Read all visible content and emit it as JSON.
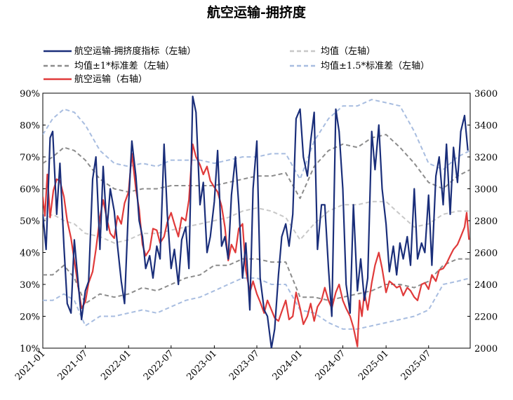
{
  "chart_data": {
    "type": "line",
    "title": "航空运输-拥挤度",
    "xlabel": "",
    "ylabel_left": "",
    "ylabel_right": "",
    "x_ticks": [
      "2021-01",
      "2021-07",
      "2022-01",
      "2022-07",
      "2023-01",
      "2023-07",
      "2024-01",
      "2024-07",
      "2025-01",
      "2025-07"
    ],
    "x_range": [
      "2021-01-01",
      "2025-12-25"
    ],
    "y_left_ticks": [
      "10%",
      "20%",
      "30%",
      "40%",
      "50%",
      "60%",
      "70%",
      "80%",
      "90%"
    ],
    "y_left_range": [
      0.1,
      0.9
    ],
    "y_right_ticks": [
      "2000",
      "2200",
      "2400",
      "2600",
      "2800",
      "3000",
      "3200",
      "3400",
      "3600"
    ],
    "y_right_range": [
      2000,
      3600
    ],
    "grid": false,
    "legend_position": "top",
    "series": [
      {
        "name": "航空运输-拥挤度指标（左轴）",
        "axis": "left",
        "style": "solid",
        "color": "#1a2e7a",
        "x": [
          "2021-01-01",
          "2021-01-15",
          "2021-02-01",
          "2021-02-12",
          "2021-03-01",
          "2021-03-15",
          "2021-04-01",
          "2021-04-15",
          "2021-05-01",
          "2021-05-15",
          "2021-06-01",
          "2021-06-15",
          "2021-07-01",
          "2021-07-15",
          "2021-08-01",
          "2021-08-15",
          "2021-09-01",
          "2021-09-15",
          "2021-10-01",
          "2021-10-15",
          "2021-11-01",
          "2021-11-15",
          "2021-12-01",
          "2021-12-15",
          "2022-01-01",
          "2022-01-15",
          "2022-02-01",
          "2022-02-15",
          "2022-03-01",
          "2022-03-15",
          "2022-04-01",
          "2022-04-15",
          "2022-05-01",
          "2022-05-15",
          "2022-06-01",
          "2022-06-15",
          "2022-07-01",
          "2022-07-15",
          "2022-08-01",
          "2022-08-15",
          "2022-09-01",
          "2022-09-15",
          "2022-10-01",
          "2022-10-15",
          "2022-11-01",
          "2022-11-15",
          "2022-12-01",
          "2022-12-15",
          "2023-01-01",
          "2023-01-15",
          "2023-02-01",
          "2023-02-15",
          "2023-03-01",
          "2023-03-15",
          "2023-04-01",
          "2023-04-15",
          "2023-05-01",
          "2023-05-15",
          "2023-06-01",
          "2023-06-15",
          "2023-07-01",
          "2023-07-15",
          "2023-08-01",
          "2023-08-15",
          "2023-09-01",
          "2023-09-15",
          "2023-10-01",
          "2023-10-15",
          "2023-11-01",
          "2023-11-15",
          "2023-12-01",
          "2023-12-15",
          "2024-01-01",
          "2024-01-15",
          "2024-02-01",
          "2024-02-15",
          "2024-03-01",
          "2024-03-15",
          "2024-04-01",
          "2024-04-15",
          "2024-05-01",
          "2024-05-15",
          "2024-06-01",
          "2024-06-15",
          "2024-07-01",
          "2024-07-15",
          "2024-08-01",
          "2024-08-15",
          "2024-09-01",
          "2024-09-15",
          "2024-10-01",
          "2024-10-15",
          "2024-11-01",
          "2024-11-15",
          "2024-12-01",
          "2024-12-15",
          "2025-01-01",
          "2025-01-15",
          "2025-02-01",
          "2025-02-15",
          "2025-03-01",
          "2025-03-15",
          "2025-04-01",
          "2025-04-15",
          "2025-05-01",
          "2025-05-15",
          "2025-06-01",
          "2025-06-15",
          "2025-07-01",
          "2025-07-15",
          "2025-08-01",
          "2025-08-15",
          "2025-09-01",
          "2025-09-15",
          "2025-10-01",
          "2025-10-15",
          "2025-11-01",
          "2025-11-15",
          "2025-12-01",
          "2025-12-15"
        ],
        "values": [
          0.52,
          0.41,
          0.76,
          0.78,
          0.52,
          0.68,
          0.42,
          0.24,
          0.21,
          0.44,
          0.3,
          0.19,
          0.28,
          0.31,
          0.63,
          0.7,
          0.41,
          0.67,
          0.47,
          0.6,
          0.53,
          0.42,
          0.31,
          0.24,
          0.55,
          0.75,
          0.64,
          0.5,
          0.45,
          0.35,
          0.39,
          0.32,
          0.42,
          0.38,
          0.74,
          0.52,
          0.35,
          0.41,
          0.3,
          0.44,
          0.48,
          0.35,
          0.89,
          0.84,
          0.55,
          0.62,
          0.4,
          0.45,
          0.56,
          0.72,
          0.42,
          0.45,
          0.38,
          0.58,
          0.7,
          0.55,
          0.32,
          0.43,
          0.22,
          0.6,
          0.75,
          0.32,
          0.22,
          0.2,
          0.1,
          0.16,
          0.33,
          0.45,
          0.49,
          0.42,
          0.52,
          0.82,
          0.85,
          0.7,
          0.64,
          0.75,
          0.84,
          0.41,
          0.55,
          0.55,
          0.35,
          0.2,
          0.85,
          0.78,
          0.6,
          0.3,
          0.21,
          0.55,
          0.28,
          0.38,
          0.25,
          0.32,
          0.78,
          0.66,
          0.8,
          0.6,
          0.49,
          0.34,
          0.42,
          0.33,
          0.43,
          0.38,
          0.45,
          0.36,
          0.6,
          0.38,
          0.43,
          0.4,
          0.58,
          0.36,
          0.64,
          0.7,
          0.55,
          0.74,
          0.52,
          0.73,
          0.62,
          0.78,
          0.83,
          0.72
        ]
      },
      {
        "name": "均值（左轴）",
        "axis": "left",
        "style": "dash",
        "color": "#c8c8c8",
        "x": [
          "2021-01-01",
          "2021-02-12",
          "2021-04-01",
          "2021-05-15",
          "2021-07-01",
          "2021-09-01",
          "2021-11-01",
          "2022-01-01",
          "2022-03-01",
          "2022-05-01",
          "2022-07-01",
          "2022-09-01",
          "2022-11-01",
          "2023-01-01",
          "2023-03-01",
          "2023-05-01",
          "2023-07-01",
          "2023-09-01",
          "2023-11-01",
          "2024-01-01",
          "2024-03-01",
          "2024-05-01",
          "2024-07-01",
          "2024-09-01",
          "2024-11-01",
          "2025-01-01",
          "2025-03-01",
          "2025-05-01",
          "2025-07-01",
          "2025-09-01",
          "2025-11-01",
          "2025-12-25"
        ],
        "values": [
          0.5,
          0.52,
          0.5,
          0.49,
          0.46,
          0.45,
          0.43,
          0.44,
          0.46,
          0.46,
          0.47,
          0.48,
          0.49,
          0.5,
          0.51,
          0.53,
          0.54,
          0.53,
          0.51,
          0.44,
          0.49,
          0.53,
          0.55,
          0.55,
          0.56,
          0.56,
          0.52,
          0.48,
          0.49,
          0.52,
          0.53,
          0.53
        ]
      },
      {
        "name": "均值±1*标准差（左轴）",
        "axis": "left",
        "style": "dash",
        "color": "#8c8c8c",
        "x": [
          "2021-01-01",
          "2021-02-12",
          "2021-04-01",
          "2021-05-15",
          "2021-07-01",
          "2021-09-01",
          "2021-11-01",
          "2022-01-01",
          "2022-03-01",
          "2022-05-01",
          "2022-07-01",
          "2022-09-01",
          "2022-11-01",
          "2023-01-01",
          "2023-03-01",
          "2023-05-01",
          "2023-07-01",
          "2023-09-01",
          "2023-11-01",
          "2024-01-01",
          "2024-03-01",
          "2024-05-01",
          "2024-07-01",
          "2024-09-01",
          "2024-11-01",
          "2025-01-01",
          "2025-03-01",
          "2025-05-01",
          "2025-07-01",
          "2025-09-01",
          "2025-11-01",
          "2025-12-25"
        ],
        "upper": [
          0.68,
          0.7,
          0.73,
          0.72,
          0.69,
          0.63,
          0.6,
          0.59,
          0.6,
          0.6,
          0.61,
          0.61,
          0.61,
          0.61,
          0.62,
          0.63,
          0.64,
          0.64,
          0.65,
          0.57,
          0.67,
          0.72,
          0.74,
          0.73,
          0.76,
          0.77,
          0.73,
          0.68,
          0.62,
          0.6,
          0.64,
          0.66
        ],
        "lower": [
          0.33,
          0.33,
          0.36,
          0.32,
          0.24,
          0.27,
          0.26,
          0.27,
          0.29,
          0.28,
          0.3,
          0.32,
          0.33,
          0.36,
          0.36,
          0.38,
          0.38,
          0.37,
          0.37,
          0.26,
          0.26,
          0.25,
          0.26,
          0.27,
          0.28,
          0.3,
          0.3,
          0.29,
          0.31,
          0.36,
          0.38,
          0.38
        ]
      },
      {
        "name": "均值±1.5*标准差（左轴）",
        "axis": "left",
        "style": "dash",
        "color": "#a8bde0",
        "x": [
          "2021-01-01",
          "2021-02-12",
          "2021-04-01",
          "2021-05-15",
          "2021-07-01",
          "2021-09-01",
          "2021-11-01",
          "2022-01-01",
          "2022-03-01",
          "2022-05-01",
          "2022-07-01",
          "2022-09-01",
          "2022-11-01",
          "2023-01-01",
          "2023-03-01",
          "2023-05-01",
          "2023-07-01",
          "2023-09-01",
          "2023-11-01",
          "2024-01-01",
          "2024-03-01",
          "2024-05-01",
          "2024-07-01",
          "2024-09-01",
          "2024-11-01",
          "2025-01-01",
          "2025-03-01",
          "2025-05-01",
          "2025-07-01",
          "2025-09-01",
          "2025-11-01",
          "2025-12-25"
        ],
        "upper": [
          0.77,
          0.82,
          0.85,
          0.84,
          0.8,
          0.72,
          0.68,
          0.67,
          0.68,
          0.67,
          0.69,
          0.69,
          0.69,
          0.68,
          0.69,
          0.7,
          0.7,
          0.71,
          0.71,
          0.63,
          0.75,
          0.82,
          0.86,
          0.86,
          0.88,
          0.87,
          0.86,
          0.78,
          0.68,
          0.66,
          0.7,
          0.72
        ],
        "lower": [
          0.25,
          0.25,
          0.27,
          0.25,
          0.17,
          0.2,
          0.2,
          0.21,
          0.22,
          0.21,
          0.23,
          0.25,
          0.26,
          0.28,
          0.3,
          0.32,
          0.32,
          0.3,
          0.3,
          0.22,
          0.21,
          0.18,
          0.16,
          0.16,
          0.17,
          0.18,
          0.19,
          0.2,
          0.22,
          0.3,
          0.31,
          0.32
        ]
      },
      {
        "name": "航空运输（右轴）",
        "axis": "right",
        "style": "solid",
        "color": "#e03a3a",
        "x": [
          "2021-01-01",
          "2021-01-10",
          "2021-01-20",
          "2021-02-01",
          "2021-02-15",
          "2021-03-01",
          "2021-03-15",
          "2021-04-01",
          "2021-04-15",
          "2021-05-01",
          "2021-05-15",
          "2021-06-01",
          "2021-06-15",
          "2021-07-01",
          "2021-07-15",
          "2021-08-01",
          "2021-08-15",
          "2021-09-01",
          "2021-09-15",
          "2021-10-01",
          "2021-10-15",
          "2021-11-01",
          "2021-11-15",
          "2021-12-01",
          "2021-12-15",
          "2022-01-01",
          "2022-01-15",
          "2022-02-01",
          "2022-02-15",
          "2022-03-01",
          "2022-03-15",
          "2022-04-01",
          "2022-04-15",
          "2022-05-01",
          "2022-05-15",
          "2022-06-01",
          "2022-06-15",
          "2022-07-01",
          "2022-07-15",
          "2022-08-01",
          "2022-08-15",
          "2022-09-01",
          "2022-09-15",
          "2022-10-01",
          "2022-10-15",
          "2022-11-01",
          "2022-11-15",
          "2022-12-01",
          "2022-12-15",
          "2023-01-01",
          "2023-01-15",
          "2023-02-01",
          "2023-02-15",
          "2023-03-01",
          "2023-03-15",
          "2023-04-01",
          "2023-04-15",
          "2023-05-01",
          "2023-05-15",
          "2023-06-01",
          "2023-06-15",
          "2023-07-01",
          "2023-07-15",
          "2023-08-01",
          "2023-08-15",
          "2023-09-01",
          "2023-09-15",
          "2023-10-01",
          "2023-10-15",
          "2023-11-01",
          "2023-11-15",
          "2023-12-01",
          "2023-12-15",
          "2024-01-01",
          "2024-01-15",
          "2024-02-01",
          "2024-02-15",
          "2024-03-01",
          "2024-03-15",
          "2024-04-01",
          "2024-04-15",
          "2024-05-01",
          "2024-05-15",
          "2024-06-01",
          "2024-06-15",
          "2024-07-01",
          "2024-07-15",
          "2024-08-01",
          "2024-08-15",
          "2024-09-01",
          "2024-09-10",
          "2024-09-20",
          "2024-10-01",
          "2024-10-15",
          "2024-11-01",
          "2024-11-15",
          "2024-12-01",
          "2024-12-15",
          "2025-01-01",
          "2025-01-15",
          "2025-02-01",
          "2025-02-15",
          "2025-03-01",
          "2025-03-15",
          "2025-04-01",
          "2025-04-15",
          "2025-05-01",
          "2025-05-15",
          "2025-06-01",
          "2025-06-15",
          "2025-07-01",
          "2025-07-15",
          "2025-08-01",
          "2025-08-15",
          "2025-09-01",
          "2025-09-15",
          "2025-10-01",
          "2025-10-15",
          "2025-11-01",
          "2025-11-15",
          "2025-12-01",
          "2025-12-10",
          "2025-12-20"
        ],
        "values": [
          2950,
          2830,
          3090,
          2820,
          2990,
          3060,
          3050,
          2950,
          2800,
          2690,
          2550,
          2380,
          2250,
          2290,
          2410,
          2480,
          2620,
          2820,
          2930,
          2810,
          2720,
          2690,
          2830,
          2780,
          2910,
          2980,
          3220,
          3000,
          2870,
          2650,
          2580,
          2620,
          2750,
          2740,
          2660,
          2700,
          2790,
          2850,
          2780,
          2700,
          2820,
          2800,
          2930,
          3280,
          3200,
          3150,
          3090,
          3140,
          3050,
          3010,
          2980,
          2890,
          2760,
          2550,
          2650,
          2600,
          2750,
          2780,
          2490,
          2350,
          2420,
          2340,
          2290,
          2220,
          2300,
          2240,
          2190,
          2170,
          2230,
          2300,
          2180,
          2200,
          2350,
          2250,
          2150,
          2200,
          2280,
          2170,
          2260,
          2300,
          2380,
          2300,
          2250,
          2350,
          2400,
          2300,
          2250,
          2200,
          2130,
          2010,
          2300,
          2200,
          2350,
          2240,
          2410,
          2520,
          2600,
          2500,
          2350,
          2420,
          2400,
          2380,
          2390,
          2330,
          2380,
          2360,
          2320,
          2300,
          2400,
          2410,
          2370,
          2460,
          2420,
          2490,
          2500,
          2530,
          2580,
          2620,
          2650,
          2700,
          2760,
          2850,
          2680
        ]
      }
    ]
  }
}
